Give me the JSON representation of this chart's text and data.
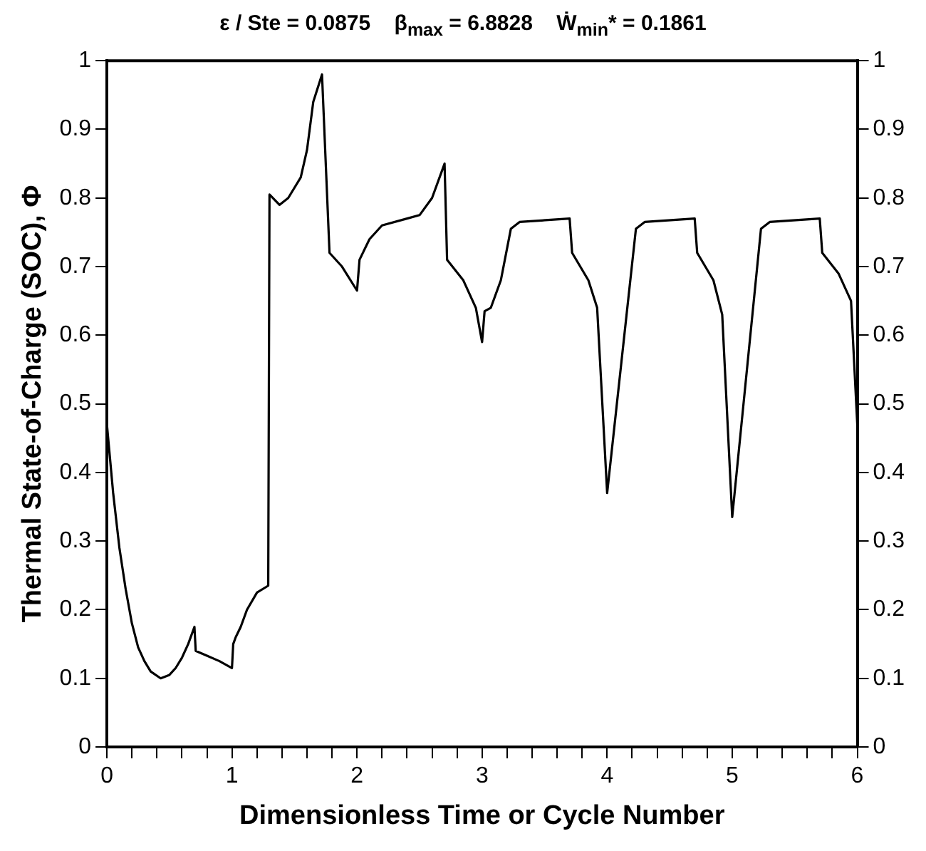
{
  "chart_data": {
    "type": "line",
    "title": "ε / Ste = 0.0875    β$_{max}$ = 6.8828    Ẇ$_{min}$* = 0.1861",
    "xlabel": "Dimensionless Time or Cycle Number",
    "ylabel": "Thermal State-of-Charge (SOC), Φ",
    "series": [
      {
        "color": "#000000",
        "x": [
          0,
          0.05,
          0.1,
          0.15,
          0.2,
          0.25,
          0.3,
          0.35,
          0.43,
          0.5,
          0.55,
          0.6,
          0.65,
          0.7,
          0.71,
          0.8,
          0.9,
          1.0,
          1.01,
          1.03,
          1.07,
          1.12,
          1.2,
          1.29,
          1.3,
          1.38,
          1.45,
          1.55,
          1.6,
          1.65,
          1.72,
          1.78,
          1.88,
          2.0,
          2.02,
          2.1,
          2.2,
          2.4,
          2.5,
          2.6,
          2.7,
          2.72,
          2.85,
          2.95,
          3.0,
          3.02,
          3.07,
          3.15,
          3.23,
          3.3,
          3.7,
          3.72,
          3.85,
          3.92,
          4.0,
          4.23,
          4.3,
          4.7,
          4.72,
          4.85,
          4.92,
          5.0,
          5.23,
          5.3,
          5.7,
          5.72,
          5.85,
          5.95,
          6.0
        ],
        "values": [
          0.47,
          0.37,
          0.29,
          0.23,
          0.18,
          0.145,
          0.125,
          0.11,
          0.1,
          0.105,
          0.115,
          0.13,
          0.15,
          0.175,
          0.14,
          0.133,
          0.125,
          0.115,
          0.15,
          0.16,
          0.175,
          0.2,
          0.225,
          0.235,
          0.805,
          0.79,
          0.8,
          0.83,
          0.87,
          0.94,
          0.98,
          0.72,
          0.7,
          0.665,
          0.71,
          0.74,
          0.76,
          0.77,
          0.775,
          0.8,
          0.85,
          0.71,
          0.68,
          0.64,
          0.59,
          0.635,
          0.64,
          0.68,
          0.755,
          0.765,
          0.77,
          0.72,
          0.68,
          0.64,
          0.37,
          0.755,
          0.765,
          0.77,
          0.72,
          0.68,
          0.63,
          0.335,
          0.755,
          0.765,
          0.77,
          0.72,
          0.69,
          0.65,
          0.47
        ]
      }
    ],
    "xlim": [
      0,
      6
    ],
    "xticks": [
      0,
      {
        "value": 0.2,
        "label": null
      },
      {
        "value": 0.4,
        "label": null
      },
      {
        "value": 0.6,
        "label": null
      },
      {
        "value": 0.8,
        "label": null
      },
      1,
      {
        "value": 1.2,
        "label": null
      },
      {
        "value": 1.4,
        "label": null
      },
      {
        "value": 1.6,
        "label": null
      },
      {
        "value": 1.8,
        "label": null
      },
      2,
      {
        "value": 2.2,
        "label": null
      },
      {
        "value": 2.4,
        "label": null
      },
      {
        "value": 2.6,
        "label": null
      },
      {
        "value": 2.8,
        "label": null
      },
      3,
      {
        "value": 3.2,
        "label": null
      },
      {
        "value": 3.4,
        "label": null
      },
      {
        "value": 3.6,
        "label": null
      },
      {
        "value": 3.8,
        "label": null
      },
      4,
      {
        "value": 4.2,
        "label": null
      },
      {
        "value": 4.4,
        "label": null
      },
      {
        "value": 4.6,
        "label": null
      },
      {
        "value": 4.8,
        "label": null
      },
      5,
      {
        "value": 5.2,
        "label": null
      },
      {
        "value": 5.4,
        "label": null
      },
      {
        "value": 5.6,
        "label": null
      },
      {
        "value": 5.8,
        "label": null
      },
      6
    ],
    "ylim": [
      0,
      1
    ],
    "yticks": [
      0,
      0.1,
      0.2,
      0.3,
      0.4,
      0.5,
      0.6,
      0.7,
      0.8,
      0.9,
      1
    ],
    "y2lim": [
      0,
      1
    ],
    "y2ticks": [
      0,
      0.1,
      0.2,
      0.3,
      0.4,
      0.5,
      0.6,
      0.7,
      0.8,
      0.9,
      1
    ],
    "grid": false,
    "legend": false,
    "marker": "none",
    "line_style": "solid"
  }
}
